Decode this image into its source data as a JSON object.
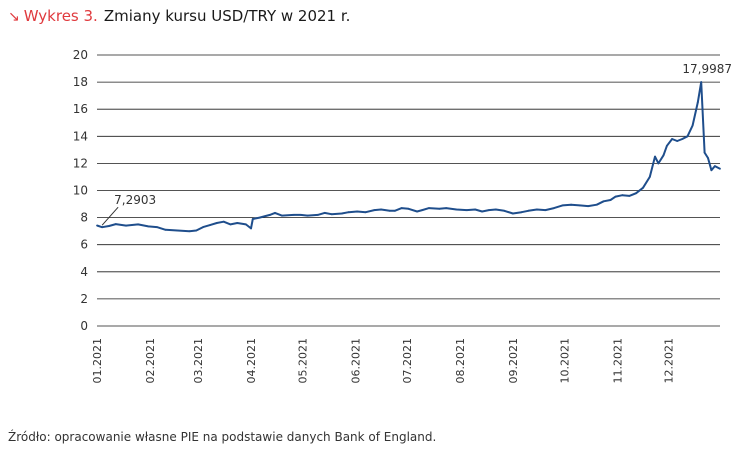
{
  "header": {
    "arrow_icon": "arrow-down-right-icon",
    "prefix": "Wykres 3.",
    "title": "Zmiany kursu USD/TRY w 2021 r."
  },
  "source_text": "Źródło: opracowanie własne PIE na podstawie danych Bank of England.",
  "colors": {
    "accent": "#e03a3e",
    "line": "#1f4e8c",
    "grid": "#1a1a1a"
  },
  "chart_data": {
    "type": "line",
    "title": "Zmiany kursu USD/TRY w 2021 r.",
    "xlabel": "",
    "ylabel": "",
    "ylim": [
      0,
      20
    ],
    "yticks": [
      "0",
      "2",
      "4",
      "6",
      "8",
      "10",
      "12",
      "14",
      "16",
      "18",
      "20"
    ],
    "grid": true,
    "legend": "none",
    "x_tick_labels": [
      "01.2021",
      "02.2021",
      "03.2021",
      "04.2021",
      "05.2021",
      "06.2021",
      "07.2021",
      "08.2021",
      "09.2021",
      "10.2021",
      "11.2021",
      "12.2021"
    ],
    "annotations": [
      {
        "label": "7,2903",
        "x": "2021-01-04",
        "y": 7.29
      },
      {
        "label": "17,9987",
        "x": "2021-12-20",
        "y": 18.0
      }
    ],
    "series": [
      {
        "points": [
          [
            "2021-01-01",
            7.42
          ],
          [
            "2021-01-04",
            7.29
          ],
          [
            "2021-01-08",
            7.38
          ],
          [
            "2021-01-12",
            7.52
          ],
          [
            "2021-01-18",
            7.41
          ],
          [
            "2021-01-25",
            7.5
          ],
          [
            "2021-01-31",
            7.35
          ],
          [
            "2021-02-05",
            7.3
          ],
          [
            "2021-02-10",
            7.1
          ],
          [
            "2021-02-17",
            7.05
          ],
          [
            "2021-02-24",
            7.0
          ],
          [
            "2021-02-28",
            7.05
          ],
          [
            "2021-03-04",
            7.3
          ],
          [
            "2021-03-08",
            7.45
          ],
          [
            "2021-03-12",
            7.6
          ],
          [
            "2021-03-16",
            7.7
          ],
          [
            "2021-03-20",
            7.5
          ],
          [
            "2021-03-24",
            7.6
          ],
          [
            "2021-03-29",
            7.5
          ],
          [
            "2021-04-01",
            7.2
          ],
          [
            "2021-04-02",
            7.9
          ],
          [
            "2021-04-06",
            8.0
          ],
          [
            "2021-04-12",
            8.2
          ],
          [
            "2021-04-15",
            8.35
          ],
          [
            "2021-04-19",
            8.15
          ],
          [
            "2021-04-26",
            8.2
          ],
          [
            "2021-04-30",
            8.2
          ],
          [
            "2021-05-04",
            8.15
          ],
          [
            "2021-05-10",
            8.2
          ],
          [
            "2021-05-14",
            8.35
          ],
          [
            "2021-05-18",
            8.25
          ],
          [
            "2021-05-24",
            8.3
          ],
          [
            "2021-05-28",
            8.4
          ],
          [
            "2021-06-02",
            8.45
          ],
          [
            "2021-06-07",
            8.4
          ],
          [
            "2021-06-12",
            8.55
          ],
          [
            "2021-06-16",
            8.6
          ],
          [
            "2021-06-21",
            8.5
          ],
          [
            "2021-06-24",
            8.5
          ],
          [
            "2021-06-28",
            8.7
          ],
          [
            "2021-07-02",
            8.65
          ],
          [
            "2021-07-07",
            8.45
          ],
          [
            "2021-07-10",
            8.55
          ],
          [
            "2021-07-14",
            8.7
          ],
          [
            "2021-07-20",
            8.65
          ],
          [
            "2021-07-24",
            8.7
          ],
          [
            "2021-07-30",
            8.6
          ],
          [
            "2021-08-05",
            8.55
          ],
          [
            "2021-08-10",
            8.6
          ],
          [
            "2021-08-14",
            8.45
          ],
          [
            "2021-08-18",
            8.55
          ],
          [
            "2021-08-22",
            8.6
          ],
          [
            "2021-08-27",
            8.5
          ],
          [
            "2021-09-01",
            8.3
          ],
          [
            "2021-09-06",
            8.4
          ],
          [
            "2021-09-10",
            8.5
          ],
          [
            "2021-09-15",
            8.6
          ],
          [
            "2021-09-20",
            8.55
          ],
          [
            "2021-09-25",
            8.7
          ],
          [
            "2021-09-30",
            8.9
          ],
          [
            "2021-10-05",
            8.95
          ],
          [
            "2021-10-10",
            8.9
          ],
          [
            "2021-10-15",
            8.85
          ],
          [
            "2021-10-20",
            8.95
          ],
          [
            "2021-10-24",
            9.2
          ],
          [
            "2021-10-28",
            9.3
          ],
          [
            "2021-10-31",
            9.55
          ],
          [
            "2021-11-04",
            9.65
          ],
          [
            "2021-11-08",
            9.6
          ],
          [
            "2021-11-12",
            9.8
          ],
          [
            "2021-11-16",
            10.2
          ],
          [
            "2021-11-20",
            11.0
          ],
          [
            "2021-11-23",
            12.5
          ],
          [
            "2021-11-25",
            12.0
          ],
          [
            "2021-11-28",
            12.6
          ],
          [
            "2021-11-30",
            13.3
          ],
          [
            "2021-12-03",
            13.8
          ],
          [
            "2021-12-06",
            13.65
          ],
          [
            "2021-12-09",
            13.8
          ],
          [
            "2021-12-12",
            14.0
          ],
          [
            "2021-12-15",
            14.8
          ],
          [
            "2021-12-18",
            16.5
          ],
          [
            "2021-12-20",
            18.0
          ],
          [
            "2021-12-22",
            12.8
          ],
          [
            "2021-12-24",
            12.4
          ],
          [
            "2021-12-26",
            11.5
          ],
          [
            "2021-12-28",
            11.8
          ],
          [
            "2021-12-31",
            11.6
          ]
        ]
      }
    ]
  }
}
